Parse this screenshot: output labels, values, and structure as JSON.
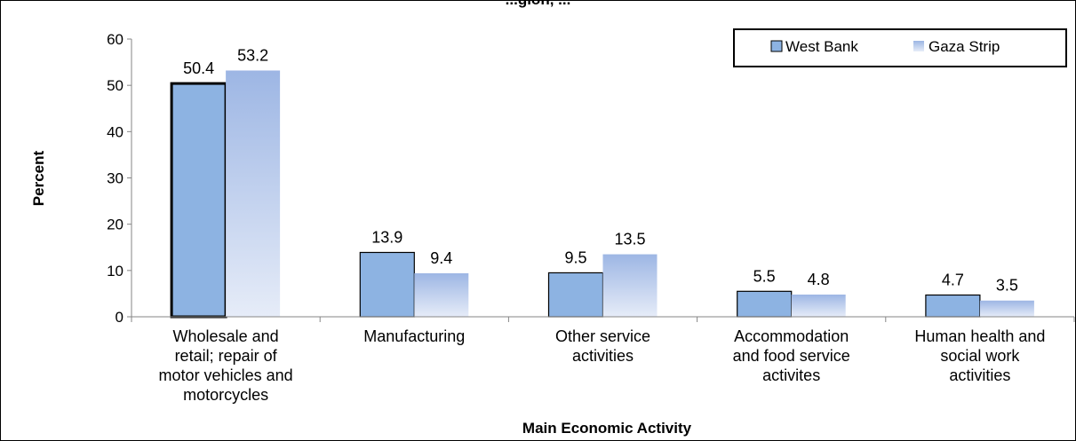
{
  "chart_data": {
    "type": "bar",
    "title_partial": "...gion, ...",
    "xlabel": "Main Economic Activity",
    "ylabel": "Percent",
    "ylim": [
      0,
      60
    ],
    "yticks": [
      0,
      10,
      20,
      30,
      40,
      50,
      60
    ],
    "categories": [
      [
        "Wholesale and",
        "retail; repair of",
        "motor vehicles and",
        "motorcycles"
      ],
      [
        "Manufacturing"
      ],
      [
        "Other service",
        "activities"
      ],
      [
        "Accommodation",
        "and food service",
        "activites"
      ],
      [
        "Human health and",
        "social work",
        "activities"
      ]
    ],
    "series": [
      {
        "name": "West Bank",
        "values": [
          50.4,
          13.9,
          9.5,
          5.5,
          4.7
        ],
        "color": "#8db3e2"
      },
      {
        "name": "Gaza Strip",
        "values": [
          53.2,
          9.4,
          13.5,
          4.8,
          3.5
        ],
        "color": "#a4bde6"
      }
    ],
    "legend_position": "top-right",
    "grid": false
  }
}
